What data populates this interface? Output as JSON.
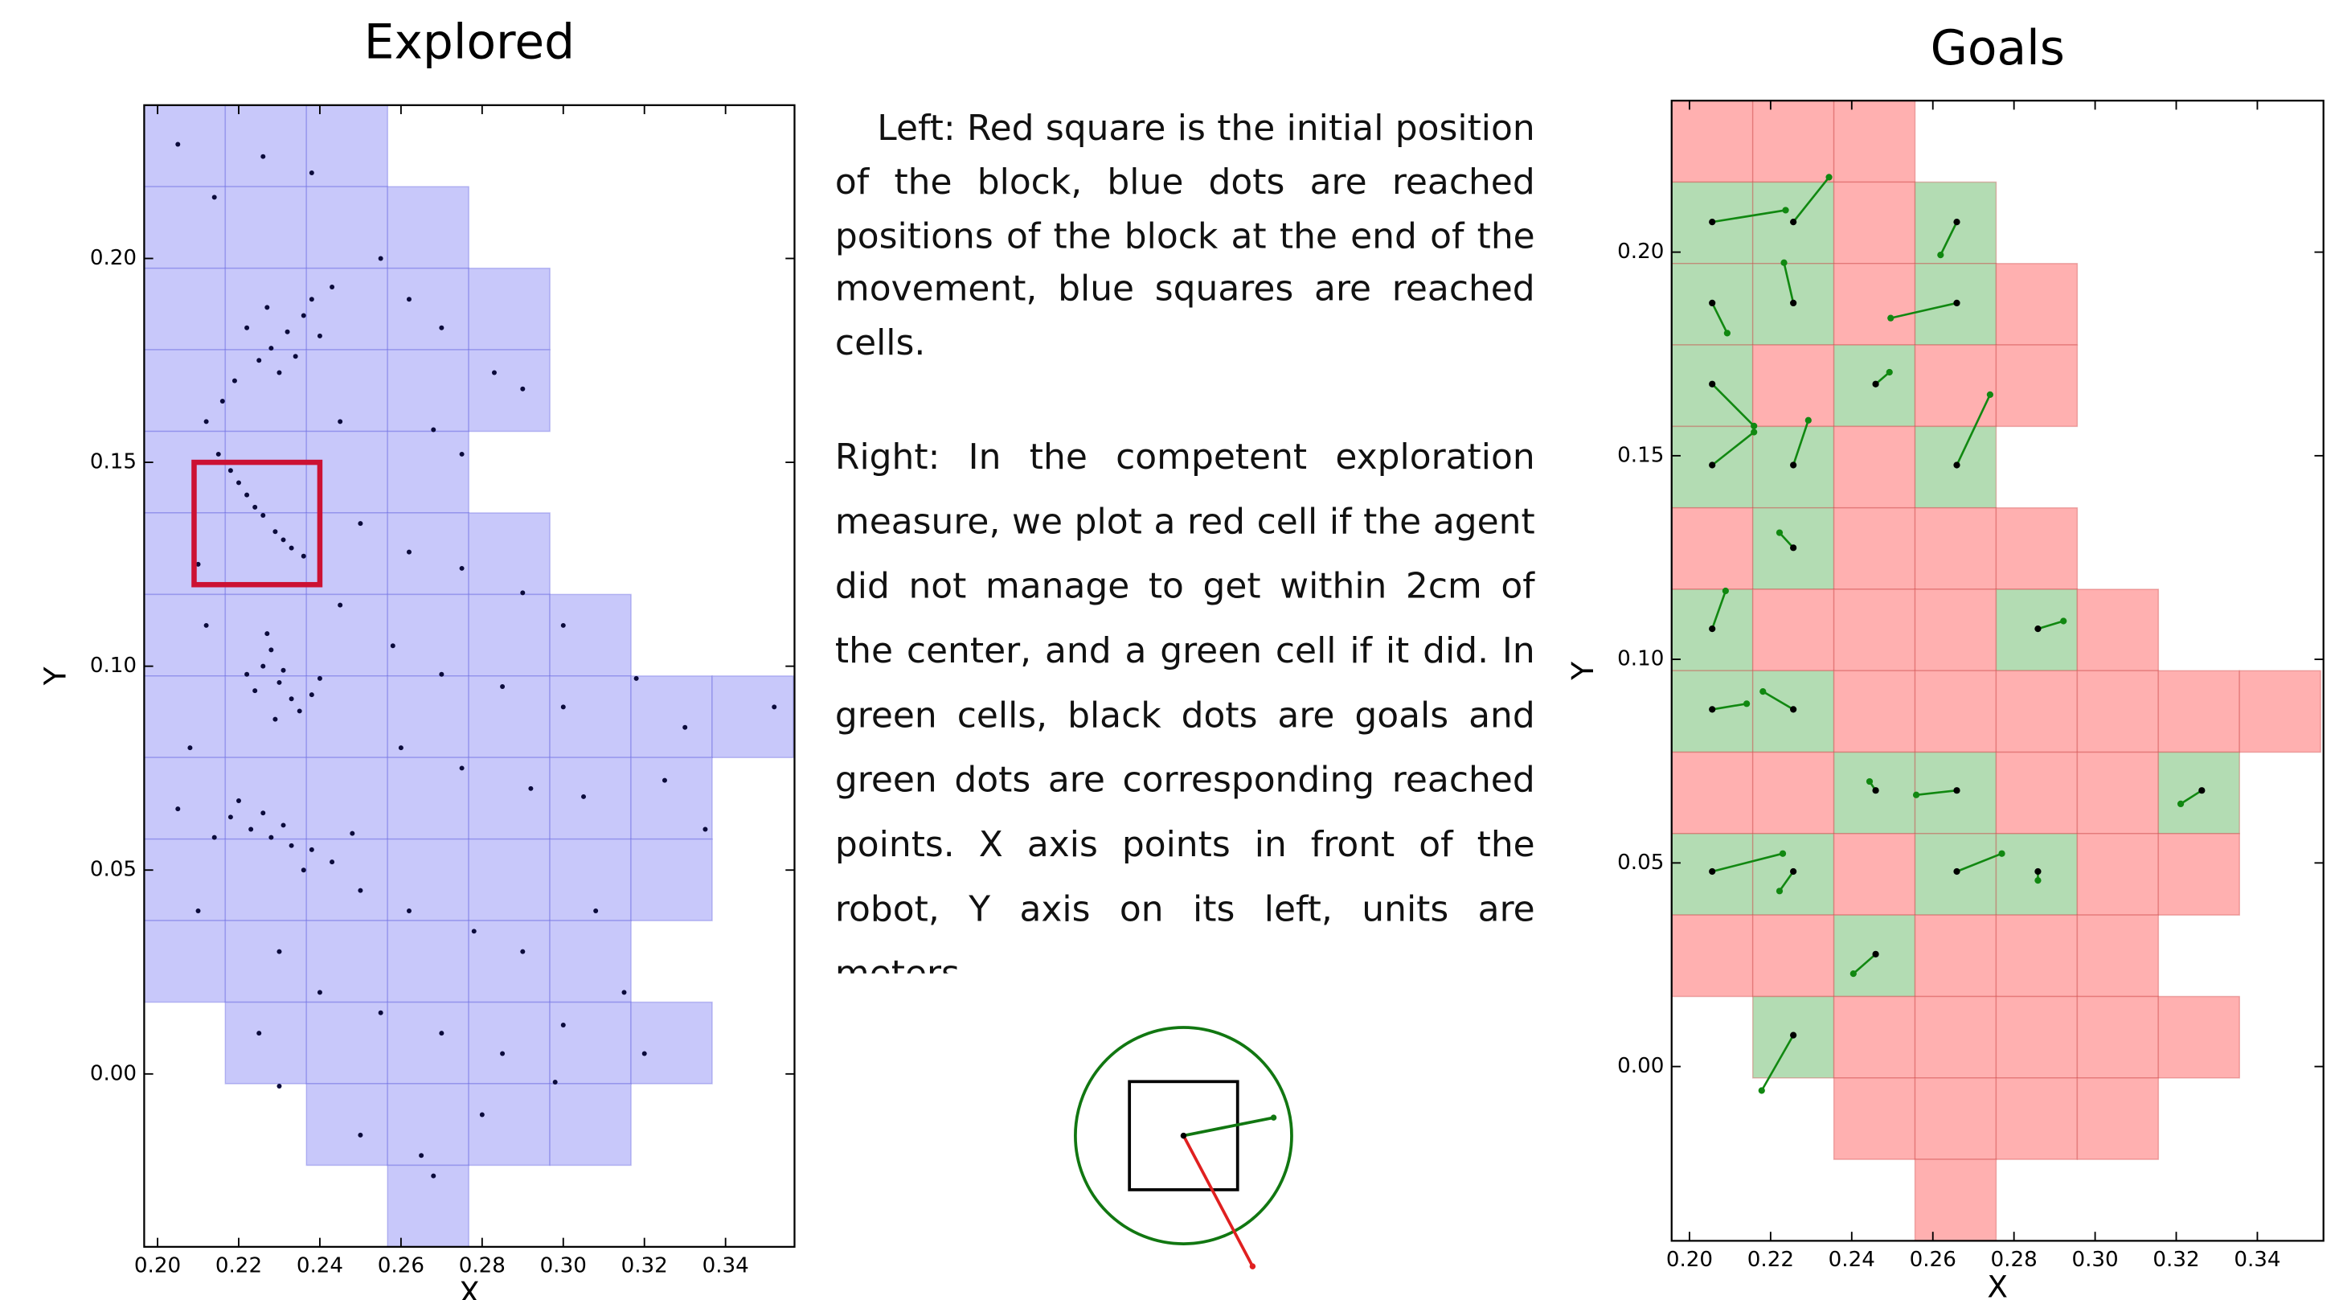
{
  "chart_data": [
    {
      "type": "scatter",
      "title": "Explored",
      "xlabel": "X",
      "ylabel": "Y",
      "xlim": [
        0.1967,
        0.357
      ],
      "ylim": [
        -0.0424,
        0.2376
      ],
      "xticks": [
        {
          "value": 0.2,
          "label": "0.20"
        },
        {
          "value": 0.22,
          "label": "0.22"
        },
        {
          "value": 0.24,
          "label": "0.24"
        },
        {
          "value": 0.26,
          "label": "0.26"
        },
        {
          "value": 0.28,
          "label": "0.28"
        },
        {
          "value": 0.3,
          "label": "0.30"
        },
        {
          "value": 0.32,
          "label": "0.32"
        },
        {
          "value": 0.34,
          "label": "0.34"
        }
      ],
      "yticks": [
        {
          "value": 0,
          "label": "0.00"
        },
        {
          "value": 0.05,
          "label": "0.05"
        },
        {
          "value": 0.1,
          "label": "0.10"
        },
        {
          "value": 0.15,
          "label": "0.15"
        },
        {
          "value": 0.2,
          "label": "0.20"
        }
      ],
      "cell_size": 0.02,
      "cell_color": "#c8c8fa",
      "cells": [
        [
          0.1967,
          0.2176
        ],
        [
          0.2167,
          0.2176
        ],
        [
          0.2367,
          0.2176
        ],
        [
          0.1967,
          0.1976
        ],
        [
          0.2167,
          0.1976
        ],
        [
          0.2367,
          0.1976
        ],
        [
          0.2567,
          0.1976
        ],
        [
          0.1967,
          0.1776
        ],
        [
          0.2167,
          0.1776
        ],
        [
          0.2367,
          0.1776
        ],
        [
          0.2567,
          0.1776
        ],
        [
          0.2767,
          0.1776
        ],
        [
          0.1967,
          0.1576
        ],
        [
          0.2167,
          0.1576
        ],
        [
          0.2367,
          0.1576
        ],
        [
          0.2567,
          0.1576
        ],
        [
          0.2767,
          0.1576
        ],
        [
          0.1967,
          0.1376
        ],
        [
          0.2167,
          0.1376
        ],
        [
          0.2367,
          0.1376
        ],
        [
          0.2567,
          0.1376
        ],
        [
          0.1967,
          0.1176
        ],
        [
          0.2167,
          0.1176
        ],
        [
          0.2367,
          0.1176
        ],
        [
          0.2567,
          0.1176
        ],
        [
          0.2767,
          0.1176
        ],
        [
          0.1967,
          0.0976
        ],
        [
          0.2167,
          0.0976
        ],
        [
          0.2367,
          0.0976
        ],
        [
          0.2567,
          0.0976
        ],
        [
          0.2767,
          0.0976
        ],
        [
          0.2967,
          0.0976
        ],
        [
          0.1967,
          0.0776
        ],
        [
          0.2167,
          0.0776
        ],
        [
          0.2367,
          0.0776
        ],
        [
          0.2567,
          0.0776
        ],
        [
          0.2767,
          0.0776
        ],
        [
          0.2967,
          0.0776
        ],
        [
          0.3167,
          0.0776
        ],
        [
          0.3367,
          0.0776
        ],
        [
          0.1967,
          0.0576
        ],
        [
          0.2167,
          0.0576
        ],
        [
          0.2367,
          0.0576
        ],
        [
          0.2567,
          0.0576
        ],
        [
          0.2767,
          0.0576
        ],
        [
          0.2967,
          0.0576
        ],
        [
          0.3167,
          0.0576
        ],
        [
          0.1967,
          0.0376
        ],
        [
          0.2167,
          0.0376
        ],
        [
          0.2367,
          0.0376
        ],
        [
          0.2567,
          0.0376
        ],
        [
          0.2767,
          0.0376
        ],
        [
          0.2967,
          0.0376
        ],
        [
          0.3167,
          0.0376
        ],
        [
          0.1967,
          0.0176
        ],
        [
          0.2167,
          0.0176
        ],
        [
          0.2367,
          0.0176
        ],
        [
          0.2567,
          0.0176
        ],
        [
          0.2767,
          0.0176
        ],
        [
          0.2967,
          0.0176
        ],
        [
          0.2167,
          -0.0024
        ],
        [
          0.2367,
          -0.0024
        ],
        [
          0.2567,
          -0.0024
        ],
        [
          0.2767,
          -0.0024
        ],
        [
          0.2967,
          -0.0024
        ],
        [
          0.3167,
          -0.0024
        ],
        [
          0.2367,
          -0.0224
        ],
        [
          0.2567,
          -0.0224
        ],
        [
          0.2767,
          -0.0224
        ],
        [
          0.2967,
          -0.0224
        ],
        [
          0.2567,
          -0.0424
        ]
      ],
      "start_square": {
        "x": [
          0.209,
          0.24
        ],
        "y": [
          0.12,
          0.15
        ],
        "color": "#cc1133"
      },
      "point_color": "#0b0b3b",
      "points": {
        "x": [
          0.228,
          0.232,
          0.236,
          0.225,
          0.23,
          0.238,
          0.222,
          0.234,
          0.24,
          0.227,
          0.219,
          0.243,
          0.218,
          0.222,
          0.226,
          0.229,
          0.233,
          0.22,
          0.224,
          0.231,
          0.236,
          0.215,
          0.212,
          0.216,
          0.226,
          0.23,
          0.233,
          0.228,
          0.235,
          0.224,
          0.231,
          0.238,
          0.229,
          0.222,
          0.24,
          0.227,
          0.218,
          0.223,
          0.228,
          0.233,
          0.238,
          0.243,
          0.22,
          0.226,
          0.231,
          0.214,
          0.236,
          0.248,
          0.205,
          0.214,
          0.226,
          0.238,
          0.255,
          0.262,
          0.27,
          0.283,
          0.29,
          0.275,
          0.268,
          0.245,
          0.25,
          0.262,
          0.275,
          0.29,
          0.3,
          0.245,
          0.258,
          0.27,
          0.285,
          0.3,
          0.318,
          0.33,
          0.352,
          0.26,
          0.275,
          0.292,
          0.305,
          0.325,
          0.335,
          0.25,
          0.262,
          0.278,
          0.29,
          0.308,
          0.23,
          0.24,
          0.255,
          0.27,
          0.285,
          0.3,
          0.315,
          0.32,
          0.298,
          0.28,
          0.265,
          0.25,
          0.268,
          0.225,
          0.23,
          0.21,
          0.205,
          0.208,
          0.212,
          0.21,
          0.209
        ],
        "y": [
          0.178,
          0.182,
          0.186,
          0.175,
          0.172,
          0.19,
          0.183,
          0.176,
          0.181,
          0.188,
          0.17,
          0.193,
          0.148,
          0.142,
          0.137,
          0.133,
          0.129,
          0.145,
          0.139,
          0.131,
          0.127,
          0.152,
          0.16,
          0.165,
          0.1,
          0.096,
          0.092,
          0.104,
          0.089,
          0.094,
          0.099,
          0.093,
          0.087,
          0.098,
          0.097,
          0.108,
          0.063,
          0.06,
          0.058,
          0.056,
          0.055,
          0.052,
          0.067,
          0.064,
          0.061,
          0.058,
          0.05,
          0.059,
          0.228,
          0.215,
          0.225,
          0.221,
          0.2,
          0.19,
          0.183,
          0.172,
          0.168,
          0.152,
          0.158,
          0.16,
          0.135,
          0.128,
          0.124,
          0.118,
          0.11,
          0.115,
          0.105,
          0.098,
          0.095,
          0.09,
          0.097,
          0.085,
          0.09,
          0.08,
          0.075,
          0.07,
          0.068,
          0.072,
          0.06,
          0.045,
          0.04,
          0.035,
          0.03,
          0.04,
          0.03,
          0.02,
          0.015,
          0.01,
          0.005,
          0.012,
          0.02,
          0.005,
          -0.002,
          -0.01,
          -0.02,
          -0.015,
          -0.025,
          0.01,
          -0.003,
          0.04,
          0.065,
          0.08,
          0.11,
          0.125,
          0.135
        ]
      }
    },
    {
      "type": "segment",
      "title": "Goals",
      "xlabel": "X",
      "ylabel": "Y",
      "xlim": [
        0.1956,
        0.3563
      ],
      "ylim": [
        -0.0428,
        0.2372
      ],
      "xticks": [
        {
          "value": 0.2,
          "label": "0.20"
        },
        {
          "value": 0.22,
          "label": "0.22"
        },
        {
          "value": 0.24,
          "label": "0.24"
        },
        {
          "value": 0.26,
          "label": "0.26"
        },
        {
          "value": 0.28,
          "label": "0.28"
        },
        {
          "value": 0.3,
          "label": "0.30"
        },
        {
          "value": 0.32,
          "label": "0.32"
        },
        {
          "value": 0.34,
          "label": "0.34"
        }
      ],
      "yticks": [
        {
          "value": 0,
          "label": "0.00"
        },
        {
          "value": 0.05,
          "label": "0.05"
        },
        {
          "value": 0.1,
          "label": "0.10"
        },
        {
          "value": 0.15,
          "label": "0.15"
        },
        {
          "value": 0.2,
          "label": "0.20"
        }
      ],
      "cell_size": 0.02,
      "cells": [
        [
          0.1956,
          0.2172,
          "#ffb0b0"
        ],
        [
          0.2156,
          0.2172,
          "#ffb0b0"
        ],
        [
          0.2356,
          0.2172,
          "#ffb0b0"
        ],
        [
          0.1956,
          0.1972,
          "#b3dcb3"
        ],
        [
          0.2156,
          0.1972,
          "#b3dcb3"
        ],
        [
          0.2356,
          0.1972,
          "#ffb0b0"
        ],
        [
          0.2556,
          0.1972,
          "#b3dcb3"
        ],
        [
          0.1956,
          0.1772,
          "#b3dcb3"
        ],
        [
          0.2156,
          0.1772,
          "#b3dcb3"
        ],
        [
          0.2356,
          0.1772,
          "#ffb0b0"
        ],
        [
          0.2556,
          0.1772,
          "#b3dcb3"
        ],
        [
          0.2756,
          0.1772,
          "#ffb0b0"
        ],
        [
          0.1956,
          0.1572,
          "#b3dcb3"
        ],
        [
          0.2156,
          0.1572,
          "#ffb0b0"
        ],
        [
          0.2356,
          0.1572,
          "#b3dcb3"
        ],
        [
          0.2556,
          0.1572,
          "#ffb0b0"
        ],
        [
          0.2756,
          0.1572,
          "#ffb0b0"
        ],
        [
          0.1956,
          0.1372,
          "#b3dcb3"
        ],
        [
          0.2156,
          0.1372,
          "#b3dcb3"
        ],
        [
          0.2356,
          0.1372,
          "#ffb0b0"
        ],
        [
          0.2556,
          0.1372,
          "#b3dcb3"
        ],
        [
          0.1956,
          0.1172,
          "#ffb0b0"
        ],
        [
          0.2156,
          0.1172,
          "#b3dcb3"
        ],
        [
          0.2356,
          0.1172,
          "#ffb0b0"
        ],
        [
          0.2556,
          0.1172,
          "#ffb0b0"
        ],
        [
          0.2756,
          0.1172,
          "#ffb0b0"
        ],
        [
          0.1956,
          0.0972,
          "#b3dcb3"
        ],
        [
          0.2156,
          0.0972,
          "#ffb0b0"
        ],
        [
          0.2356,
          0.0972,
          "#ffb0b0"
        ],
        [
          0.2556,
          0.0972,
          "#ffb0b0"
        ],
        [
          0.2756,
          0.0972,
          "#b3dcb3"
        ],
        [
          0.2956,
          0.0972,
          "#ffb0b0"
        ],
        [
          0.1956,
          0.0772,
          "#b3dcb3"
        ],
        [
          0.2156,
          0.0772,
          "#b3dcb3"
        ],
        [
          0.2356,
          0.0772,
          "#ffb0b0"
        ],
        [
          0.2556,
          0.0772,
          "#ffb0b0"
        ],
        [
          0.2756,
          0.0772,
          "#ffb0b0"
        ],
        [
          0.2956,
          0.0772,
          "#ffb0b0"
        ],
        [
          0.3156,
          0.0772,
          "#ffb0b0"
        ],
        [
          0.3356,
          0.0772,
          "#ffb0b0"
        ],
        [
          0.1956,
          0.0572,
          "#ffb0b0"
        ],
        [
          0.2156,
          0.0572,
          "#ffb0b0"
        ],
        [
          0.2356,
          0.0572,
          "#b3dcb3"
        ],
        [
          0.2556,
          0.0572,
          "#b3dcb3"
        ],
        [
          0.2756,
          0.0572,
          "#ffb0b0"
        ],
        [
          0.2956,
          0.0572,
          "#ffb0b0"
        ],
        [
          0.3156,
          0.0572,
          "#b3dcb3"
        ],
        [
          0.1956,
          0.0372,
          "#b3dcb3"
        ],
        [
          0.2156,
          0.0372,
          "#b3dcb3"
        ],
        [
          0.2356,
          0.0372,
          "#ffb0b0"
        ],
        [
          0.2556,
          0.0372,
          "#b3dcb3"
        ],
        [
          0.2756,
          0.0372,
          "#b3dcb3"
        ],
        [
          0.2956,
          0.0372,
          "#ffb0b0"
        ],
        [
          0.3156,
          0.0372,
          "#ffb0b0"
        ],
        [
          0.1956,
          0.0172,
          "#ffb0b0"
        ],
        [
          0.2156,
          0.0172,
          "#ffb0b0"
        ],
        [
          0.2356,
          0.0172,
          "#b3dcb3"
        ],
        [
          0.2556,
          0.0172,
          "#ffb0b0"
        ],
        [
          0.2756,
          0.0172,
          "#ffb0b0"
        ],
        [
          0.2956,
          0.0172,
          "#ffb0b0"
        ],
        [
          0.2156,
          -0.0028,
          "#b3dcb3"
        ],
        [
          0.2356,
          -0.0028,
          "#ffb0b0"
        ],
        [
          0.2556,
          -0.0028,
          "#ffb0b0"
        ],
        [
          0.2756,
          -0.0028,
          "#ffb0b0"
        ],
        [
          0.2956,
          -0.0028,
          "#ffb0b0"
        ],
        [
          0.3156,
          -0.0028,
          "#ffb0b0"
        ],
        [
          0.2356,
          -0.0228,
          "#ffb0b0"
        ],
        [
          0.2556,
          -0.0228,
          "#ffb0b0"
        ],
        [
          0.2756,
          -0.0228,
          "#ffb0b0"
        ],
        [
          0.2956,
          -0.0228,
          "#ffb0b0"
        ],
        [
          0.2556,
          -0.0428,
          "#ffb0b0"
        ]
      ],
      "goal_color": "#000000",
      "reached_color": "#118811",
      "goals": {
        "x": [
          0.2056,
          0.2256,
          0.2659,
          0.2056,
          0.2256,
          0.2659,
          0.2056,
          0.2459,
          0.2056,
          0.2256,
          0.2659,
          0.2256,
          0.2056,
          0.2859,
          0.2056,
          0.2256,
          0.2459,
          0.2659,
          0.3263,
          0.2056,
          0.2256,
          0.2659,
          0.2859,
          0.2459,
          0.2256
        ],
        "y": [
          0.2074,
          0.2074,
          0.2074,
          0.1875,
          0.1875,
          0.1875,
          0.1676,
          0.1676,
          0.1477,
          0.1477,
          0.1477,
          0.1274,
          0.1075,
          0.1075,
          0.0877,
          0.0877,
          0.0678,
          0.0678,
          0.0678,
          0.0479,
          0.0479,
          0.0479,
          0.0479,
          0.0276,
          0.0077
        ]
      },
      "reached": {
        "x": [
          0.2237,
          0.2344,
          0.2619,
          0.2093,
          0.2233,
          0.2496,
          0.2159,
          0.2493,
          0.2159,
          0.2293,
          0.2741,
          0.2222,
          0.2089,
          0.2922,
          0.2141,
          0.2181,
          0.2444,
          0.2559,
          0.3211,
          0.223,
          0.2222,
          0.277,
          0.2859,
          0.2404,
          0.2178
        ],
        "y": [
          0.2103,
          0.2184,
          0.1993,
          0.1801,
          0.1974,
          0.1838,
          0.1573,
          0.1705,
          0.1558,
          0.1587,
          0.165,
          0.1311,
          0.1168,
          0.1094,
          0.0891,
          0.0921,
          0.07,
          0.0667,
          0.0645,
          0.0523,
          0.0431,
          0.0523,
          0.0457,
          0.0228,
          -0.0059
        ]
      }
    }
  ],
  "caption": {
    "left": "Left: Red square is the initial position of the block, blue dots are reached positions of the block at the end of the movement, blue squares are reached cells.",
    "right": "Right: In the competent exploration measure, we plot a red cell if the agent did not manage to get within 2cm of the center, and a green cell if it did. In green cells, black dots are goals and green dots are corresponding reached points. X axis points in front of the robot, Y axis on its left, units are meters."
  }
}
